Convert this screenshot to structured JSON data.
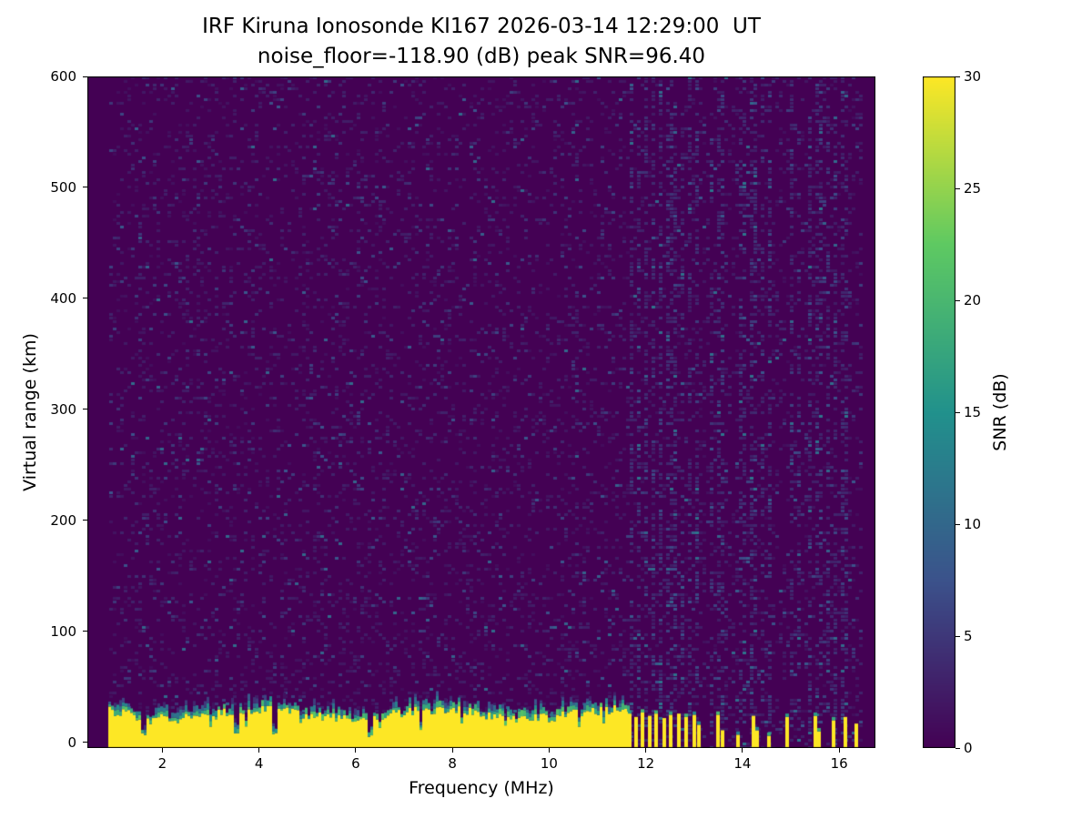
{
  "figure": {
    "title_line1": "IRF Kiruna Ionosonde KI167 2026-03-14 12:29:00  UT",
    "title_line2": "noise_floor=-118.90 (dB) peak SNR=96.40"
  },
  "chart_data": {
    "type": "heatmap",
    "title": "IRF Kiruna Ionosonde KI167 2026-03-14 12:29:00  UT\nnoise_floor=-118.90 (dB) peak SNR=96.40",
    "xlabel": "Frequency (MHz)",
    "ylabel": "Virtual range (km)",
    "xlim": [
      0.45,
      16.75
    ],
    "ylim": [
      -5,
      600
    ],
    "x_ticks": [
      2,
      4,
      6,
      8,
      10,
      12,
      14,
      16
    ],
    "y_ticks": [
      0,
      100,
      200,
      300,
      400,
      500,
      600
    ],
    "grid": false,
    "noise_floor_db": -118.9,
    "peak_snr_db": 96.4,
    "colorbar": {
      "label": "SNR (dB)",
      "min": 0,
      "max": 30,
      "ticks": [
        0,
        5,
        10,
        15,
        20,
        25,
        30
      ],
      "position": "right"
    },
    "colormap": {
      "name": "viridis",
      "anchors": [
        [
          0,
          "#440154"
        ],
        [
          0.25,
          "#3b528b"
        ],
        [
          0.5,
          "#21918c"
        ],
        [
          0.75,
          "#5ec962"
        ],
        [
          1,
          "#fde725"
        ]
      ]
    },
    "features": {
      "background_snr_db": 0,
      "data_freq_range_mhz": [
        0.88,
        16.45
      ],
      "speckle_noise": {
        "density": 0.15,
        "snr_range_db": [
          1,
          11
        ]
      },
      "ground_band": {
        "freq_range_mhz": [
          0.9,
          11.62
        ],
        "snr_db": 30,
        "height_km_range": [
          17,
          34
        ],
        "cap_snr_db_range": [
          8,
          23
        ],
        "cap_extra_km": 12
      },
      "band_notches": [
        {
          "f": 1.58,
          "h": 6,
          "w": 0.1
        },
        {
          "f": 1.72,
          "h": 14,
          "w": 0.06
        },
        {
          "f": 2.32,
          "h": 15,
          "w": 0.06
        },
        {
          "f": 2.98,
          "h": 12,
          "w": 0.07
        },
        {
          "f": 3.52,
          "h": 8,
          "w": 0.09
        },
        {
          "f": 3.68,
          "h": 13,
          "w": 0.06
        },
        {
          "f": 4.28,
          "h": 7,
          "w": 0.1
        },
        {
          "f": 4.85,
          "h": 15,
          "w": 0.05
        },
        {
          "f": 5.55,
          "h": 16,
          "w": 0.05
        },
        {
          "f": 6.28,
          "h": 5,
          "w": 0.1
        },
        {
          "f": 6.45,
          "h": 13,
          "w": 0.06
        },
        {
          "f": 7.32,
          "h": 9,
          "w": 0.08
        },
        {
          "f": 8.15,
          "h": 16,
          "w": 0.05
        },
        {
          "f": 9.05,
          "h": 14,
          "w": 0.06
        },
        {
          "f": 10.62,
          "h": 13,
          "w": 0.06
        },
        {
          "f": 11.1,
          "h": 15,
          "w": 0.05
        }
      ],
      "rfi_ticks": [
        {
          "f": 11.66,
          "h": 26
        },
        {
          "f": 11.8,
          "h": 23
        },
        {
          "f": 11.94,
          "h": 27
        },
        {
          "f": 12.08,
          "h": 24
        },
        {
          "f": 12.22,
          "h": 26
        },
        {
          "f": 12.38,
          "h": 22
        },
        {
          "f": 12.52,
          "h": 25
        },
        {
          "f": 12.68,
          "h": 26
        },
        {
          "f": 12.84,
          "h": 23
        },
        {
          "f": 13.0,
          "h": 25
        },
        {
          "f": 13.1,
          "h": 16
        },
        {
          "f": 13.5,
          "h": 25
        },
        {
          "f": 13.58,
          "h": 11
        },
        {
          "f": 13.9,
          "h": 7
        },
        {
          "f": 14.22,
          "h": 24
        },
        {
          "f": 14.3,
          "h": 11
        },
        {
          "f": 14.55,
          "h": 6
        },
        {
          "f": 14.93,
          "h": 23
        },
        {
          "f": 15.5,
          "h": 24
        },
        {
          "f": 15.58,
          "h": 10
        },
        {
          "f": 15.88,
          "h": 20
        },
        {
          "f": 16.12,
          "h": 23
        },
        {
          "f": 16.35,
          "h": 17
        }
      ],
      "noise_stripes": [
        {
          "f": 11.72,
          "boost": 3.0
        },
        {
          "f": 11.86,
          "boost": 2.6
        },
        {
          "f": 12.0,
          "boost": 3.0
        },
        {
          "f": 12.14,
          "boost": 2.6
        },
        {
          "f": 12.3,
          "boost": 3.0
        },
        {
          "f": 12.44,
          "boost": 2.6
        },
        {
          "f": 12.58,
          "boost": 3.0
        },
        {
          "f": 12.74,
          "boost": 2.6
        },
        {
          "f": 12.9,
          "boost": 2.8
        },
        {
          "f": 13.04,
          "boost": 2.6
        },
        {
          "f": 13.35,
          "boost": 2.3
        },
        {
          "f": 13.55,
          "boost": 2.5
        },
        {
          "f": 14.0,
          "boost": 2.2
        },
        {
          "f": 14.22,
          "boost": 2.7
        },
        {
          "f": 14.42,
          "boost": 2.3
        },
        {
          "f": 14.58,
          "boost": 2.5
        },
        {
          "f": 15.0,
          "boost": 2.5
        },
        {
          "f": 15.18,
          "boost": 2.2
        },
        {
          "f": 15.38,
          "boost": 2.5
        },
        {
          "f": 15.58,
          "boost": 2.3
        },
        {
          "f": 15.75,
          "boost": 2.2
        },
        {
          "f": 15.92,
          "boost": 2.7
        },
        {
          "f": 16.1,
          "boost": 2.3
        }
      ],
      "seed": 20260314
    }
  }
}
